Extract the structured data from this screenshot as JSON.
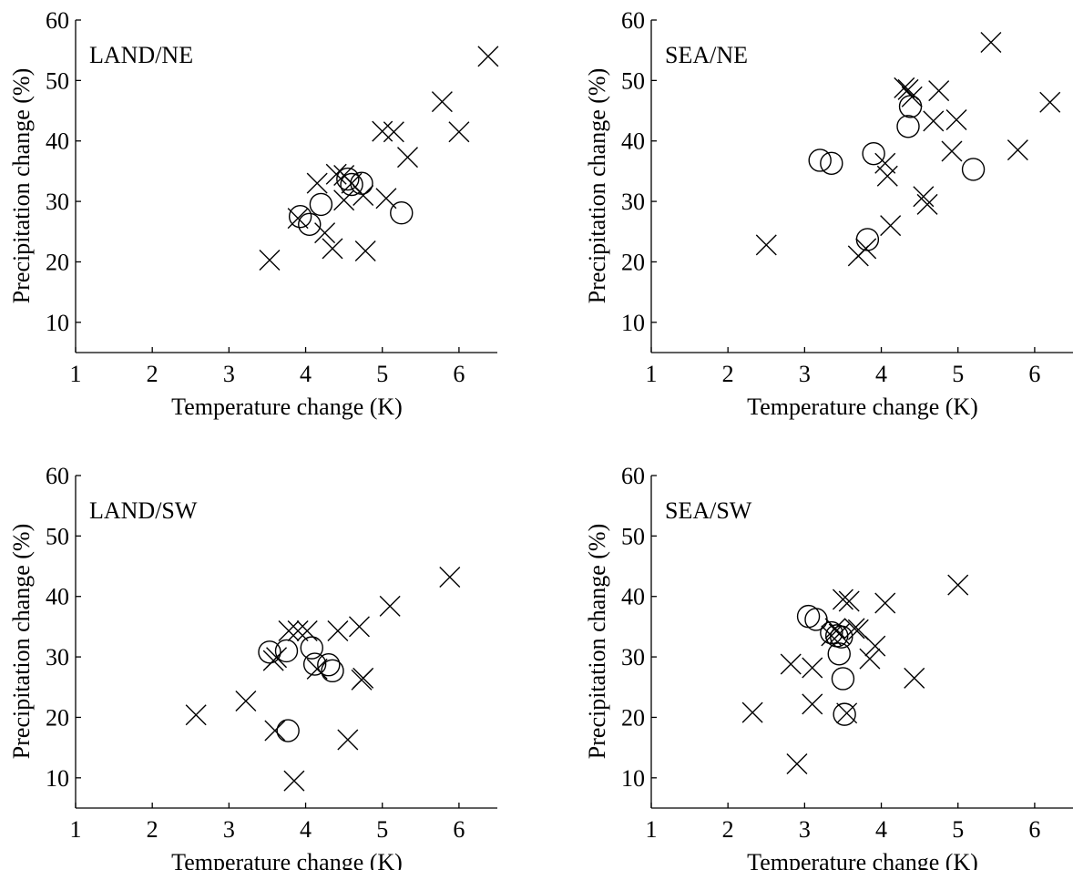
{
  "chart_data": [
    {
      "type": "scatter",
      "title": "",
      "panel_label": "LAND/NE",
      "xlabel": "Temperature change (K)",
      "ylabel": "Precipitation change (%)",
      "xlim": [
        1,
        6.5
      ],
      "ylim": [
        5,
        60
      ],
      "xticks": [
        1,
        2,
        3,
        4,
        5,
        6
      ],
      "yticks": [
        10,
        20,
        30,
        40,
        50,
        60
      ],
      "grid": false,
      "series": [
        {
          "marker": "x",
          "points": [
            [
              3.53,
              20.3
            ],
            [
              3.9,
              27.2
            ],
            [
              4.15,
              33.0
            ],
            [
              4.25,
              24.8
            ],
            [
              4.35,
              22.2
            ],
            [
              4.4,
              34.5
            ],
            [
              4.5,
              34.3
            ],
            [
              4.5,
              30.2
            ],
            [
              4.6,
              33.0
            ],
            [
              4.75,
              31.0
            ],
            [
              4.78,
              21.8
            ],
            [
              5.0,
              41.6
            ],
            [
              5.05,
              30.5
            ],
            [
              5.15,
              41.5
            ],
            [
              5.33,
              37.3
            ],
            [
              5.78,
              46.5
            ],
            [
              6.0,
              41.5
            ],
            [
              6.38,
              54.0
            ]
          ]
        },
        {
          "marker": "o",
          "points": [
            [
              3.93,
              27.5
            ],
            [
              4.05,
              26.2
            ],
            [
              4.2,
              29.5
            ],
            [
              4.55,
              33.7
            ],
            [
              4.6,
              32.8
            ],
            [
              4.73,
              33.0
            ],
            [
              5.25,
              28.1
            ]
          ]
        }
      ]
    },
    {
      "type": "scatter",
      "title": "",
      "panel_label": "SEA/NE",
      "xlabel": "Temperature change (K)",
      "ylabel": "Precipitation change (%)",
      "xlim": [
        1,
        6.5
      ],
      "ylim": [
        5,
        60
      ],
      "xticks": [
        1,
        2,
        3,
        4,
        5,
        6
      ],
      "yticks": [
        10,
        20,
        30,
        40,
        50,
        60
      ],
      "grid": false,
      "series": [
        {
          "marker": "x",
          "points": [
            [
              2.5,
              22.8
            ],
            [
              3.7,
              21.0
            ],
            [
              3.8,
              22.2
            ],
            [
              4.05,
              36.3
            ],
            [
              4.08,
              34.2
            ],
            [
              4.12,
              26.0
            ],
            [
              4.3,
              48.8
            ],
            [
              4.35,
              48.5
            ],
            [
              4.4,
              47.3
            ],
            [
              4.55,
              30.8
            ],
            [
              4.6,
              29.5
            ],
            [
              4.68,
              43.3
            ],
            [
              4.75,
              48.3
            ],
            [
              4.92,
              38.3
            ],
            [
              4.98,
              43.5
            ],
            [
              5.43,
              56.3
            ],
            [
              5.78,
              38.5
            ],
            [
              6.2,
              46.4
            ]
          ]
        },
        {
          "marker": "o",
          "points": [
            [
              3.2,
              36.8
            ],
            [
              3.35,
              36.3
            ],
            [
              3.82,
              23.7
            ],
            [
              3.9,
              37.9
            ],
            [
              4.35,
              42.4
            ],
            [
              4.38,
              45.7
            ],
            [
              5.2,
              35.3
            ]
          ]
        }
      ]
    },
    {
      "type": "scatter",
      "title": "",
      "panel_label": "LAND/SW",
      "xlabel": "Temperature change (K)",
      "ylabel": "Precipitation change (%)",
      "xlim": [
        1,
        6.5
      ],
      "ylim": [
        5,
        60
      ],
      "xticks": [
        1,
        2,
        3,
        4,
        5,
        6
      ],
      "yticks": [
        10,
        20,
        30,
        40,
        50,
        60
      ],
      "grid": false,
      "series": [
        {
          "marker": "x",
          "points": [
            [
              2.57,
              20.4
            ],
            [
              3.22,
              22.7
            ],
            [
              3.58,
              29.4
            ],
            [
              3.62,
              29.9
            ],
            [
              3.6,
              17.8
            ],
            [
              3.78,
              34.3
            ],
            [
              3.85,
              9.5
            ],
            [
              3.9,
              34.3
            ],
            [
              4.02,
              34.3
            ],
            [
              4.15,
              28.0
            ],
            [
              4.42,
              34.3
            ],
            [
              4.55,
              16.3
            ],
            [
              4.7,
              35.0
            ],
            [
              4.73,
              26.2
            ],
            [
              4.75,
              26.5
            ],
            [
              5.1,
              38.4
            ],
            [
              5.88,
              43.2
            ]
          ]
        },
        {
          "marker": "o",
          "points": [
            [
              3.53,
              30.8
            ],
            [
              3.75,
              31.0
            ],
            [
              3.77,
              17.8
            ],
            [
              4.08,
              31.5
            ],
            [
              4.12,
              28.8
            ],
            [
              4.3,
              28.7
            ],
            [
              4.35,
              27.7
            ]
          ]
        }
      ]
    },
    {
      "type": "scatter",
      "title": "",
      "panel_label": "SEA/SW",
      "xlabel": "Temperature change (K)",
      "ylabel": "Precipitation change (%)",
      "xlim": [
        1,
        6.5
      ],
      "ylim": [
        5,
        60
      ],
      "xticks": [
        1,
        2,
        3,
        4,
        5,
        6
      ],
      "yticks": [
        10,
        20,
        30,
        40,
        50,
        60
      ],
      "grid": false,
      "series": [
        {
          "marker": "x",
          "points": [
            [
              2.32,
              20.8
            ],
            [
              2.82,
              28.8
            ],
            [
              2.9,
              12.3
            ],
            [
              3.1,
              28.2
            ],
            [
              3.1,
              22.2
            ],
            [
              3.35,
              33.5
            ],
            [
              3.4,
              34.7
            ],
            [
              3.45,
              33.8
            ],
            [
              3.5,
              39.5
            ],
            [
              3.55,
              20.7
            ],
            [
              3.58,
              39.2
            ],
            [
              3.65,
              34.7
            ],
            [
              3.7,
              34.5
            ],
            [
              3.85,
              29.7
            ],
            [
              3.92,
              31.8
            ],
            [
              4.05,
              38.9
            ],
            [
              4.43,
              26.5
            ],
            [
              5.0,
              41.9
            ]
          ]
        },
        {
          "marker": "o",
          "points": [
            [
              3.05,
              36.7
            ],
            [
              3.15,
              36.2
            ],
            [
              3.35,
              34.0
            ],
            [
              3.42,
              33.5
            ],
            [
              3.45,
              30.5
            ],
            [
              3.48,
              33.3
            ],
            [
              3.5,
              26.4
            ],
            [
              3.52,
              20.5
            ]
          ]
        }
      ]
    }
  ]
}
